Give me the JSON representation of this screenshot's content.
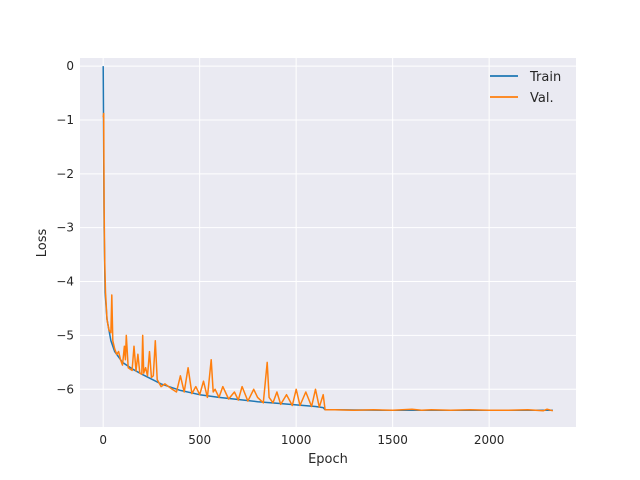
{
  "chart_data": {
    "type": "line",
    "title": "",
    "xlabel": "Epoch",
    "ylabel": "Loss",
    "xlim": [
      -120,
      2450
    ],
    "ylim": [
      -6.7,
      0.15
    ],
    "xticks": [
      0,
      500,
      1000,
      1500,
      2000
    ],
    "yticks": [
      0,
      -1,
      -2,
      -3,
      -4,
      -5,
      -6
    ],
    "grid": true,
    "legend_position": "top-right",
    "series": [
      {
        "name": "Train",
        "color": "#1f77b4",
        "x": [
          0,
          2,
          5,
          10,
          20,
          40,
          60,
          100,
          150,
          200,
          300,
          400,
          500,
          600,
          700,
          800,
          900,
          1000,
          1100,
          1140,
          1150,
          1200,
          1500,
          2000,
          2330
        ],
        "y": [
          0.0,
          -0.9,
          -3.0,
          -4.2,
          -4.7,
          -5.1,
          -5.3,
          -5.5,
          -5.62,
          -5.72,
          -5.9,
          -6.02,
          -6.1,
          -6.15,
          -6.19,
          -6.23,
          -6.26,
          -6.29,
          -6.32,
          -6.34,
          -6.38,
          -6.38,
          -6.39,
          -6.39,
          -6.39
        ]
      },
      {
        "name": "Val.",
        "color": "#ff7f0e",
        "x": [
          0,
          3,
          5,
          8,
          12,
          20,
          30,
          40,
          45,
          50,
          60,
          70,
          80,
          90,
          100,
          110,
          115,
          120,
          130,
          150,
          160,
          170,
          180,
          190,
          200,
          205,
          210,
          220,
          230,
          240,
          250,
          260,
          270,
          280,
          300,
          320,
          350,
          380,
          400,
          420,
          440,
          460,
          480,
          500,
          520,
          540,
          560,
          570,
          580,
          600,
          620,
          650,
          680,
          700,
          720,
          750,
          780,
          800,
          830,
          850,
          860,
          880,
          900,
          920,
          950,
          980,
          1000,
          1020,
          1050,
          1080,
          1100,
          1120,
          1140,
          1150,
          1200,
          1300,
          1400,
          1500,
          1600,
          1650,
          1700,
          1800,
          1900,
          2000,
          2100,
          2200,
          2280,
          2300,
          2330
        ],
        "y": [
          -0.95,
          -0.88,
          -2.6,
          -3.6,
          -4.2,
          -4.7,
          -4.9,
          -4.95,
          -4.25,
          -5.1,
          -5.25,
          -5.35,
          -5.3,
          -5.45,
          -5.55,
          -5.2,
          -5.45,
          -5.0,
          -5.6,
          -5.65,
          -5.2,
          -5.66,
          -5.35,
          -5.7,
          -5.72,
          -5.0,
          -5.7,
          -5.6,
          -5.75,
          -5.3,
          -5.78,
          -5.75,
          -5.1,
          -5.82,
          -5.95,
          -5.9,
          -5.98,
          -6.05,
          -5.75,
          -6.05,
          -5.6,
          -6.08,
          -5.95,
          -6.1,
          -5.85,
          -6.15,
          -5.45,
          -6.05,
          -6.0,
          -6.15,
          -5.95,
          -6.18,
          -6.05,
          -6.2,
          -5.95,
          -6.22,
          -6.0,
          -6.15,
          -6.25,
          -5.5,
          -6.15,
          -6.25,
          -6.05,
          -6.28,
          -6.1,
          -6.3,
          -6.0,
          -6.3,
          -6.05,
          -6.32,
          -6.0,
          -6.33,
          -6.1,
          -6.38,
          -6.38,
          -6.39,
          -6.38,
          -6.39,
          -6.37,
          -6.39,
          -6.38,
          -6.39,
          -6.38,
          -6.39,
          -6.39,
          -6.38,
          -6.4,
          -6.37,
          -6.4
        ]
      }
    ]
  }
}
